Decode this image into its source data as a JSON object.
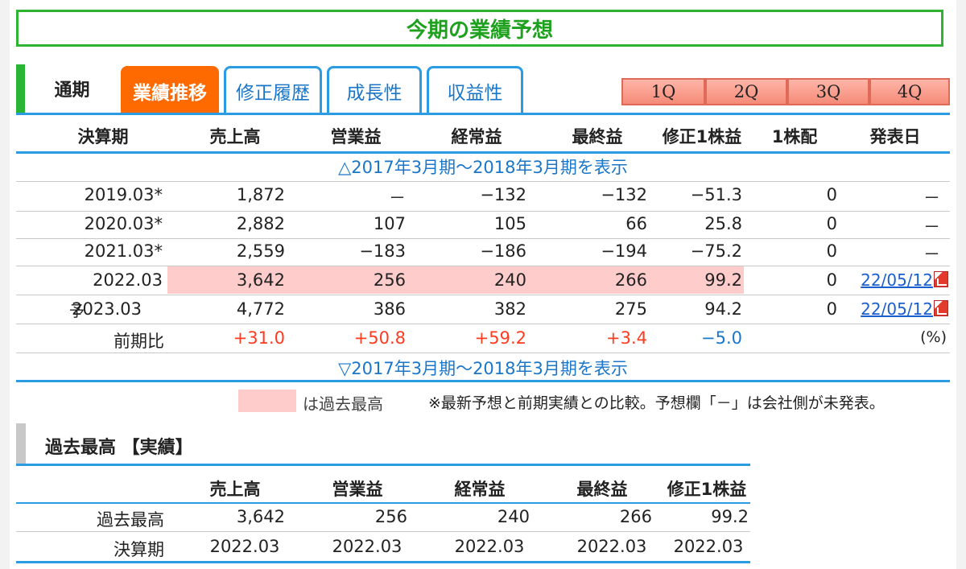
{
  "title": "今期の業績予想",
  "tabs": {
    "static_label": "通期",
    "items": [
      "業績推移",
      "修正履歴",
      "成長性",
      "収益性"
    ],
    "active": "業績推移",
    "quarters": [
      "1Q",
      "2Q",
      "3Q",
      "4Q"
    ]
  },
  "table": {
    "headers": [
      "決算期",
      "売上高",
      "営業益",
      "経常益",
      "最終益",
      "修正1株益",
      "1株配",
      "発表日"
    ],
    "toggle_top": "△2017年3月期～2018年3月期を表示",
    "toggle_bottom": "▽2017年3月期～2018年3月期を表示",
    "rows": [
      {
        "prefix": "",
        "period": "2019.03*",
        "sales": "1,872",
        "op": "－",
        "ord": "−132",
        "net": "−132",
        "eps": "−51.3",
        "div": "0",
        "date": "－",
        "record": false
      },
      {
        "prefix": "",
        "period": "2020.03*",
        "sales": "2,882",
        "op": "107",
        "ord": "105",
        "net": "66",
        "eps": "25.8",
        "div": "0",
        "date": "－",
        "record": false
      },
      {
        "prefix": "",
        "period": "2021.03*",
        "sales": "2,559",
        "op": "−183",
        "ord": "−186",
        "net": "−194",
        "eps": "−75.2",
        "div": "0",
        "date": "－",
        "record": false
      },
      {
        "prefix": "",
        "period": "2022.03",
        "sales": "3,642",
        "op": "256",
        "ord": "240",
        "net": "266",
        "eps": "99.2",
        "div": "0",
        "date": "22/05/12",
        "record": true
      },
      {
        "prefix": "予",
        "period": "2023.03",
        "sales": "4,772",
        "op": "386",
        "ord": "382",
        "net": "275",
        "eps": "94.2",
        "div": "0",
        "date": "22/05/12",
        "record": false
      }
    ],
    "yoy": {
      "label": "前期比",
      "sales": "+31.0",
      "op": "+50.8",
      "ord": "+59.2",
      "net": "+3.4",
      "eps": "−5.0",
      "unit": "(%)"
    }
  },
  "legend": {
    "swatch_label": "は過去最高",
    "note": "※最新予想と前期実績との比較。予想欄「－」は会社側が未発表。",
    "swatch_color": "#ffcccc"
  },
  "record": {
    "section_title": "過去最高 【実績】",
    "headers": [
      "売上高",
      "営業益",
      "経常益",
      "最終益",
      "修正1株益"
    ],
    "rows": [
      {
        "label": "過去最高",
        "values": [
          "3,642",
          "256",
          "240",
          "266",
          "99.2"
        ]
      },
      {
        "label": "決算期",
        "values": [
          "2022.03",
          "2022.03",
          "2022.03",
          "2022.03",
          "2022.03"
        ]
      }
    ]
  },
  "colors": {
    "accent_green": "#2fb333",
    "tab_blue": "#2b9ce4",
    "active_orange": "#ff6a00",
    "positive_red": "#ff3b1f",
    "negative_blue": "#1a76c9"
  }
}
